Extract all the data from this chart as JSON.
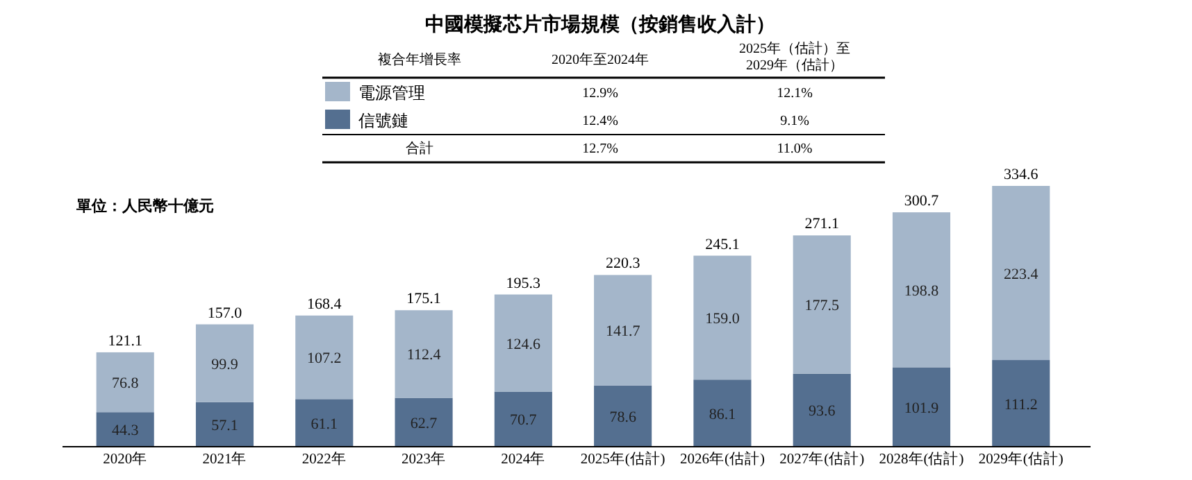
{
  "chart_data": {
    "type": "bar",
    "stacked": true,
    "title": "中國模擬芯片市場規模（按銷售收入計）",
    "ylabel": "單位：人民幣十億元",
    "categories": [
      "2020年",
      "2021年",
      "2022年",
      "2023年",
      "2024年",
      "2025年(估計)",
      "2026年(估計)",
      "2027年(估計)",
      "2028年(估計)",
      "2029年(估計)"
    ],
    "series": [
      {
        "name": "信號鏈",
        "color": "#546f90",
        "values": [
          44.3,
          57.1,
          61.1,
          62.7,
          70.7,
          78.6,
          86.1,
          93.6,
          101.9,
          111.2
        ]
      },
      {
        "name": "電源管理",
        "color": "#a4b6ca",
        "values": [
          76.8,
          99.9,
          107.2,
          112.4,
          124.6,
          141.7,
          159.0,
          177.5,
          198.8,
          223.4
        ],
        "value_labels": [
          "76.8",
          "99.9",
          "107.2",
          "112.4",
          "124.6",
          "141.7",
          "159.0",
          "177.5",
          "198.8",
          "223.4"
        ]
      }
    ],
    "totals": [
      "121.1",
      "157.0",
      "168.4",
      "175.1",
      "195.3",
      "220.3",
      "245.1",
      "271.1",
      "300.7",
      "334.6"
    ],
    "data_labels": true,
    "legend": "top",
    "annotations": [
      "複合年增長率",
      "2020年至2024年",
      "2025年（估計）至 2029年（估計）",
      "12.4%",
      "9.1%",
      "12.9%",
      "12.1%",
      "合計",
      "12.7%",
      "11.0%"
    ]
  }
}
